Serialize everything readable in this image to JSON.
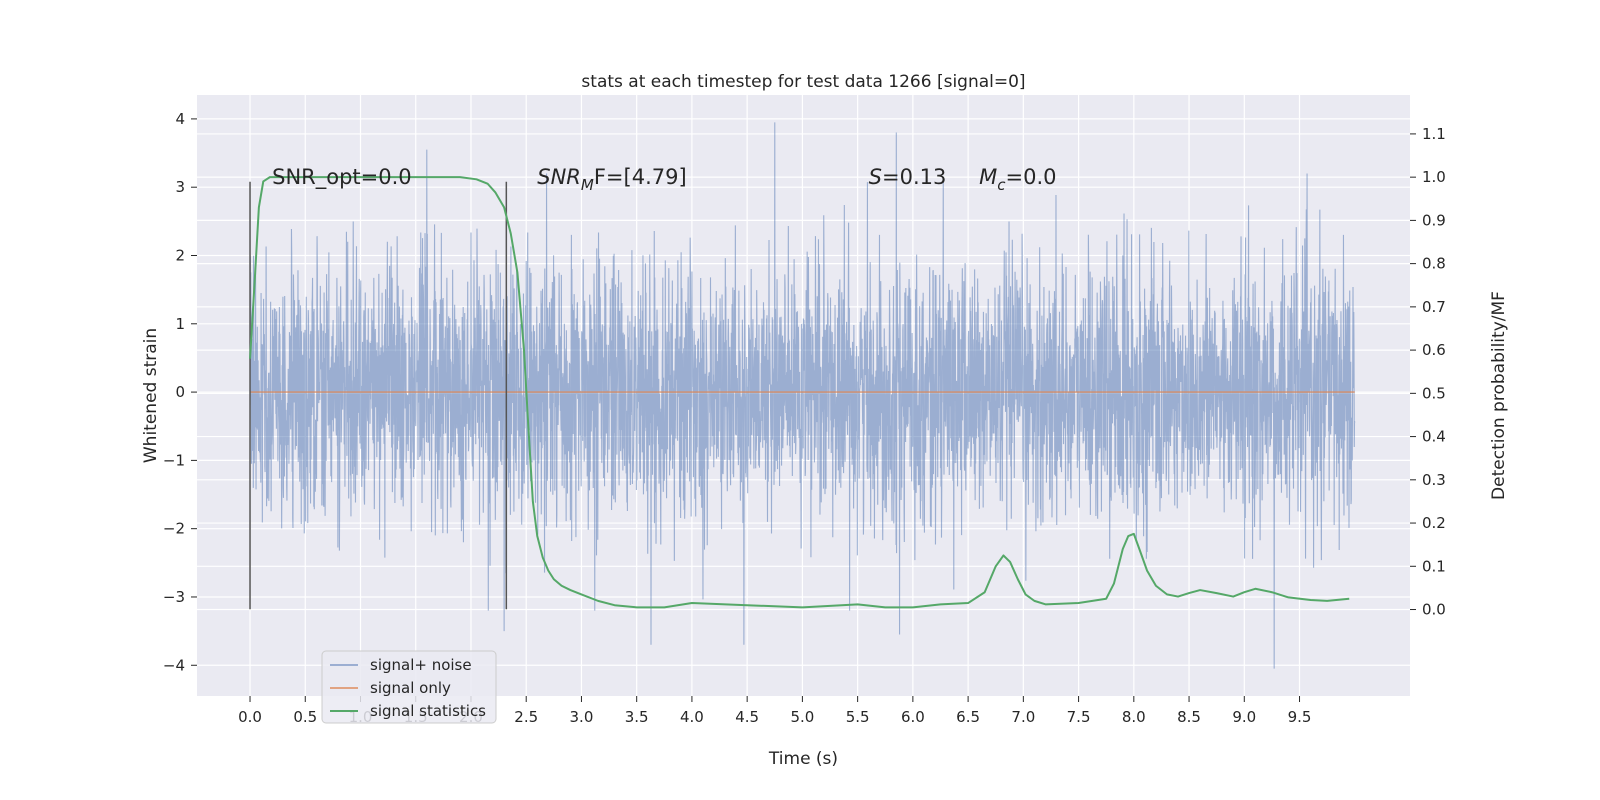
{
  "chart_data": {
    "type": "line",
    "title": "stats at each timestep for test data 1266 [signal=0]",
    "xlabel": "Time (s)",
    "ylabel": "Whitened strain",
    "y2label": "Detection probability/MF",
    "xlim": [
      -0.48,
      10.5
    ],
    "ylim": [
      -4.45,
      4.35
    ],
    "y2lim": [
      -0.2,
      1.19
    ],
    "xticks": [
      0.0,
      0.5,
      1.0,
      1.5,
      2.0,
      2.5,
      3.0,
      3.5,
      4.0,
      4.5,
      5.0,
      5.5,
      6.0,
      6.5,
      7.0,
      7.5,
      8.0,
      8.5,
      9.0,
      9.5
    ],
    "xtick_labels": [
      "0.0",
      "0.5",
      "1.0",
      "1.5",
      "2.0",
      "2.5",
      "3.0",
      "3.5",
      "4.0",
      "4.5",
      "5.0",
      "5.5",
      "6.0",
      "6.5",
      "7.0",
      "7.5",
      "8.0",
      "8.5",
      "9.0",
      "9.5"
    ],
    "yticks": [
      4,
      3,
      2,
      1,
      0,
      -1,
      -2,
      -3,
      -4
    ],
    "ytick_labels": [
      "4",
      "3",
      "2",
      "1",
      "0",
      "−1",
      "−2",
      "−3",
      "−4"
    ],
    "y2ticks": [
      1.1,
      1.0,
      0.9,
      0.8,
      0.7,
      0.6,
      0.5,
      0.4,
      0.3,
      0.2,
      0.1,
      0.0
    ],
    "y2tick_labels": [
      "1.1",
      "1.0",
      "0.9",
      "0.8",
      "0.7",
      "0.6",
      "0.5",
      "0.4",
      "0.3",
      "0.2",
      "0.1",
      "0.0"
    ],
    "grid": true,
    "legend_position": "lower-left",
    "annotations": [
      {
        "text": "SNR_opt=0.0",
        "x": 0.2
      },
      {
        "text": "SNR",
        "sub": "M",
        "text2": "F=[4.79]",
        "italic": true,
        "x": 2.6
      },
      {
        "text": "S",
        "text2": "=0.13",
        "italic": true,
        "x": 5.6
      },
      {
        "text": "M",
        "sub": "c",
        "text2": "=0.0",
        "italic": true,
        "x": 6.6
      }
    ],
    "vlines": [
      0.0,
      2.32
    ],
    "vline_range": [
      -3.18,
      3.08
    ],
    "series": [
      {
        "name": "signal+ noise",
        "color": "#4c72b0",
        "opacity": 0.5,
        "kind": "noise",
        "x_range": [
          0.0,
          10.0
        ],
        "sample_rate": 2048,
        "sigma": 1.0,
        "y_extremes": [
          {
            "x": 1.6,
            "y": 3.55
          },
          {
            "x": 4.75,
            "y": 3.95
          },
          {
            "x": 5.85,
            "y": 3.8
          },
          {
            "x": 9.27,
            "y": -4.05
          },
          {
            "x": 5.88,
            "y": -3.55
          },
          {
            "x": 3.63,
            "y": -3.7
          },
          {
            "x": 4.47,
            "y": -3.7
          },
          {
            "x": 2.3,
            "y": -3.5
          }
        ]
      },
      {
        "name": "signal only",
        "color": "#dd8452",
        "opacity": 0.7,
        "kind": "flat",
        "x": [
          0.0,
          10.0
        ],
        "y": [
          0.0,
          0.0
        ]
      },
      {
        "name": "signal statistics",
        "color": "#55a868",
        "axis": "right",
        "x": [
          0.0,
          0.04,
          0.08,
          0.12,
          0.18,
          0.25,
          0.4,
          0.7,
          1.0,
          1.5,
          1.9,
          2.05,
          2.15,
          2.22,
          2.3,
          2.36,
          2.42,
          2.48,
          2.52,
          2.56,
          2.6,
          2.65,
          2.7,
          2.75,
          2.82,
          2.9,
          3.0,
          3.15,
          3.3,
          3.5,
          3.75,
          4.0,
          4.5,
          5.0,
          5.5,
          5.75,
          6.0,
          6.25,
          6.5,
          6.65,
          6.75,
          6.82,
          6.88,
          6.95,
          7.02,
          7.1,
          7.2,
          7.5,
          7.75,
          7.82,
          7.9,
          7.95,
          8.0,
          8.05,
          8.12,
          8.2,
          8.3,
          8.4,
          8.5,
          8.6,
          8.75,
          8.9,
          9.0,
          9.1,
          9.25,
          9.4,
          9.6,
          9.75,
          9.95
        ],
        "y": [
          0.58,
          0.75,
          0.93,
          0.99,
          1.0,
          1.0,
          1.0,
          1.0,
          1.0,
          1.0,
          1.0,
          0.995,
          0.985,
          0.965,
          0.93,
          0.87,
          0.78,
          0.6,
          0.42,
          0.25,
          0.17,
          0.12,
          0.09,
          0.07,
          0.055,
          0.045,
          0.035,
          0.02,
          0.01,
          0.005,
          0.005,
          0.015,
          0.01,
          0.005,
          0.012,
          0.005,
          0.005,
          0.012,
          0.015,
          0.04,
          0.1,
          0.125,
          0.11,
          0.07,
          0.035,
          0.02,
          0.012,
          0.015,
          0.025,
          0.06,
          0.14,
          0.17,
          0.175,
          0.14,
          0.09,
          0.055,
          0.035,
          0.03,
          0.038,
          0.045,
          0.038,
          0.03,
          0.04,
          0.048,
          0.04,
          0.028,
          0.022,
          0.02,
          0.025
        ]
      }
    ]
  }
}
